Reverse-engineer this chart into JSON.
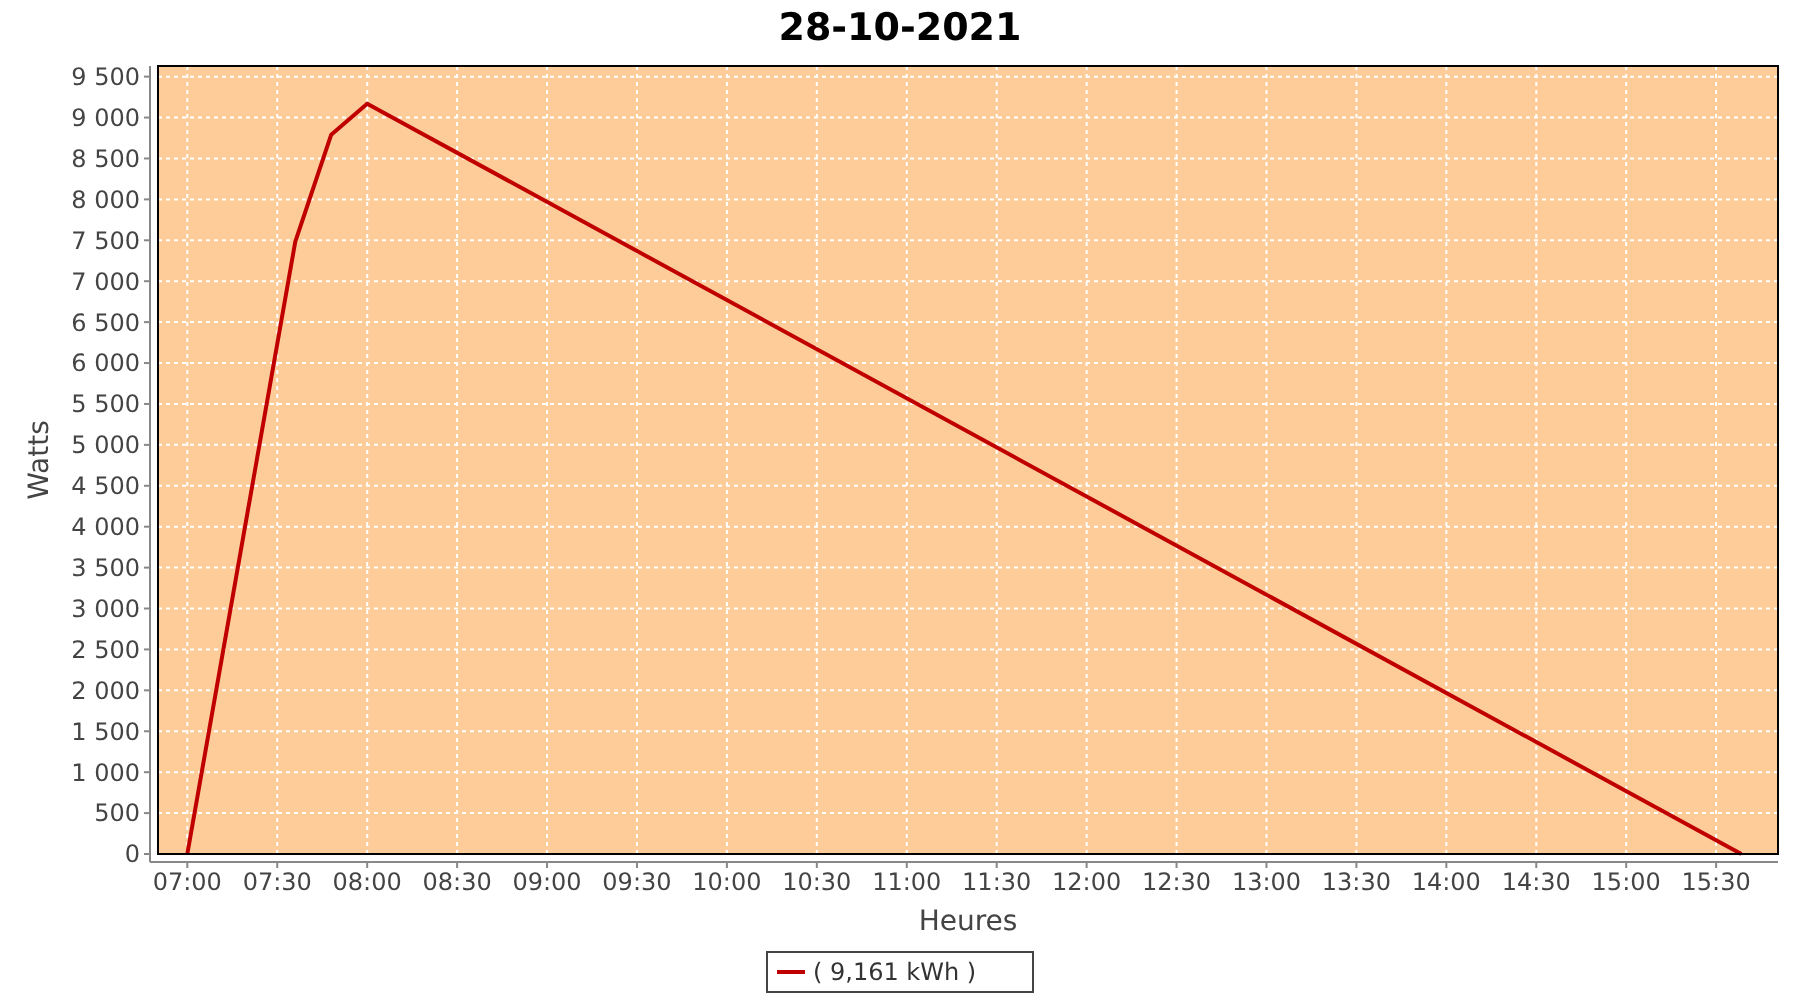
{
  "chart_data": {
    "type": "line",
    "title": "28-10-2021",
    "xlabel": "Heures",
    "ylabel": "Watts",
    "series": [
      {
        "name": "( 9,161 kWh )",
        "color": "#c00000",
        "x": [
          7.0,
          7.6,
          7.8,
          8.0,
          15.64
        ],
        "values": [
          0,
          7480,
          8790,
          9170,
          0
        ]
      }
    ],
    "xlim": [
      6.837,
      15.844
    ],
    "ylim": [
      0,
      9630
    ],
    "xticks": [
      {
        "value": 7,
        "label": "07:00"
      },
      {
        "value": 7.5,
        "label": "07:30"
      },
      {
        "value": 8,
        "label": "08:00"
      },
      {
        "value": 8.5,
        "label": "08:30"
      },
      {
        "value": 9,
        "label": "09:00"
      },
      {
        "value": 9.5,
        "label": "09:30"
      },
      {
        "value": 10,
        "label": "10:00"
      },
      {
        "value": 10.5,
        "label": "10:30"
      },
      {
        "value": 11,
        "label": "11:00"
      },
      {
        "value": 11.5,
        "label": "11:30"
      },
      {
        "value": 12,
        "label": "12:00"
      },
      {
        "value": 12.5,
        "label": "12:30"
      },
      {
        "value": 13,
        "label": "13:00"
      },
      {
        "value": 13.5,
        "label": "13:30"
      },
      {
        "value": 14,
        "label": "14:00"
      },
      {
        "value": 14.5,
        "label": "14:30"
      },
      {
        "value": 15,
        "label": "15:00"
      },
      {
        "value": 15.5,
        "label": "15:30"
      }
    ],
    "yticks": [
      0,
      500,
      {
        "value": 1000,
        "label": "1 000"
      },
      {
        "value": 1500,
        "label": "1 500"
      },
      {
        "value": 2000,
        "label": "2 000"
      },
      {
        "value": 2500,
        "label": "2 500"
      },
      {
        "value": 3000,
        "label": "3 000"
      },
      {
        "value": 3500,
        "label": "3 500"
      },
      {
        "value": 4000,
        "label": "4 000"
      },
      {
        "value": 4500,
        "label": "4 500"
      },
      {
        "value": 5000,
        "label": "5 000"
      },
      {
        "value": 5500,
        "label": "5 500"
      },
      {
        "value": 6000,
        "label": "6 000"
      },
      {
        "value": 6500,
        "label": "6 500"
      },
      {
        "value": 7000,
        "label": "7 000"
      },
      {
        "value": 7500,
        "label": "7 500"
      },
      {
        "value": 8000,
        "label": "8 000"
      },
      {
        "value": 8500,
        "label": "8 500"
      },
      {
        "value": 9000,
        "label": "9 000"
      },
      {
        "value": 9500,
        "label": "9 500"
      }
    ],
    "grid": true,
    "legend": "bottom",
    "marker": "none",
    "line_style": "solid"
  }
}
